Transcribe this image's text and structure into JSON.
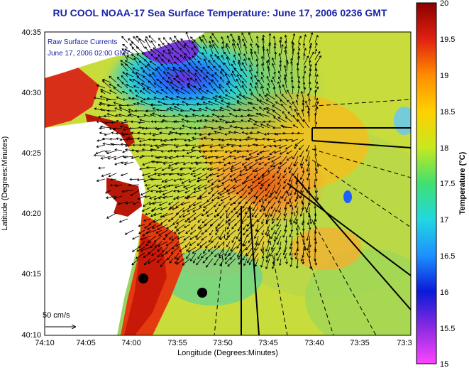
{
  "title": "RU COOL  NOAA-17  Sea Surface Temperature:  June 17, 2006 0236 GMT",
  "overlay_line1": "Raw Surface Currents",
  "overlay_line2": "June 17, 2006 02:00 GMT",
  "scale_label": "50 cm/s",
  "x_axis_label": "Longitude (Degrees:Minutes)",
  "y_axis_label": "Latitude (Degrees:Minutes)",
  "x_ticks": [
    "74:10",
    "74:05",
    "74:00",
    "73:55",
    "73:50",
    "73:45",
    "73:40",
    "73:35",
    "73:3"
  ],
  "y_ticks": [
    "40:35",
    "40:30",
    "40:25",
    "40:20",
    "40:15",
    "40:10"
  ],
  "colorbar": {
    "label": "Temperature (°C)",
    "ticks": [
      "20",
      "19.5",
      "19",
      "18.5",
      "18",
      "17.5",
      "17",
      "16.5",
      "16",
      "15.5",
      "15"
    ],
    "range": [
      15,
      20
    ]
  },
  "colors": {
    "title": "#1a23a8",
    "land": "#ffffff"
  }
}
